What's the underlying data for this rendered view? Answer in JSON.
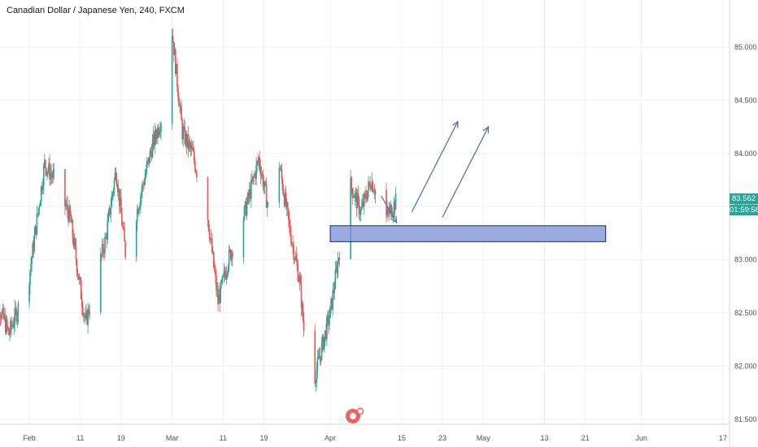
{
  "header": {
    "symbol_title": "Canadian Dollar / Japanese Yen, 240, FXCM"
  },
  "price_scale": {
    "last_price": "83.562",
    "countdown": "01:59:58"
  },
  "colors": {
    "up": "#26a69a",
    "down": "#ef5350",
    "zone_fill": "#7b8fd4",
    "zone_stroke": "#1a237e",
    "arrow": "#5b73a8",
    "grid": "#eef1f4",
    "axis_text": "#4c525e"
  },
  "chart_data": {
    "type": "candlestick",
    "x_ticks": [
      "Feb",
      "11",
      "19",
      "Mar",
      "11",
      "19",
      "Apr",
      "15",
      "23",
      "May",
      "13",
      "21",
      "Jun",
      "17"
    ],
    "y_ticks": [
      "85.000",
      "84.500",
      "84.000",
      "83.500",
      "83.000",
      "82.500",
      "82.000",
      "81.500"
    ],
    "ylim": [
      81.45,
      85.45
    ],
    "grid": true,
    "anchors": [
      {
        "date": "Jan 24",
        "price": 82.85
      },
      {
        "date": "Jan 28",
        "price": 82.3
      },
      {
        "date": "Feb 1",
        "price": 82.85
      },
      {
        "date": "Feb 4",
        "price": 83.9
      },
      {
        "date": "Feb 6",
        "price": 83.75
      },
      {
        "date": "Feb 9",
        "price": 83.4
      },
      {
        "date": "Feb 12",
        "price": 82.4
      },
      {
        "date": "Feb 16",
        "price": 83.2
      },
      {
        "date": "Feb 18",
        "price": 83.85
      },
      {
        "date": "Feb 20",
        "price": 83.0
      },
      {
        "date": "Feb 23",
        "price": 83.65
      },
      {
        "date": "Feb 25",
        "price": 84.05
      },
      {
        "date": "Feb 27",
        "price": 84.35
      },
      {
        "date": "Feb 28",
        "price": 83.75
      },
      {
        "date": "Mar 1",
        "price": 85.15
      },
      {
        "date": "Mar 3",
        "price": 84.2
      },
      {
        "date": "Mar 5",
        "price": 84.0
      },
      {
        "date": "Mar 8",
        "price": 83.4
      },
      {
        "date": "Mar 10",
        "price": 82.6
      },
      {
        "date": "Mar 12",
        "price": 83.0
      },
      {
        "date": "Mar 15",
        "price": 83.4
      },
      {
        "date": "Mar 18",
        "price": 83.95
      },
      {
        "date": "Mar 20",
        "price": 83.45
      },
      {
        "date": "Mar 22",
        "price": 83.9
      },
      {
        "date": "Mar 24",
        "price": 83.3
      },
      {
        "date": "Mar 26",
        "price": 82.8
      },
      {
        "date": "Mar 28",
        "price": 81.7
      },
      {
        "date": "Apr 1",
        "price": 82.5
      },
      {
        "date": "Apr 3",
        "price": 83.15
      },
      {
        "date": "Apr 5",
        "price": 83.7
      },
      {
        "date": "Apr 7",
        "price": 83.45
      },
      {
        "date": "Apr 9",
        "price": 83.75
      },
      {
        "date": "Apr 12",
        "price": 83.4
      },
      {
        "date": "Apr 14",
        "price": 83.56
      }
    ],
    "annotations": {
      "zone": {
        "date_start": "Apr 1",
        "date_end": "May 25",
        "price_low": 83.17,
        "price_high": 83.32
      },
      "arrows": [
        {
          "from": {
            "date": "Apr 11",
            "price": 83.6
          },
          "to": {
            "date": "Apr 14",
            "price": 83.35
          }
        },
        {
          "from": {
            "date": "Apr 17",
            "price": 83.45
          },
          "to": {
            "date": "Apr 26",
            "price": 84.3
          }
        },
        {
          "from": {
            "date": "Apr 23",
            "price": 83.4
          },
          "to": {
            "date": "May 2",
            "price": 84.25
          }
        }
      ]
    }
  }
}
